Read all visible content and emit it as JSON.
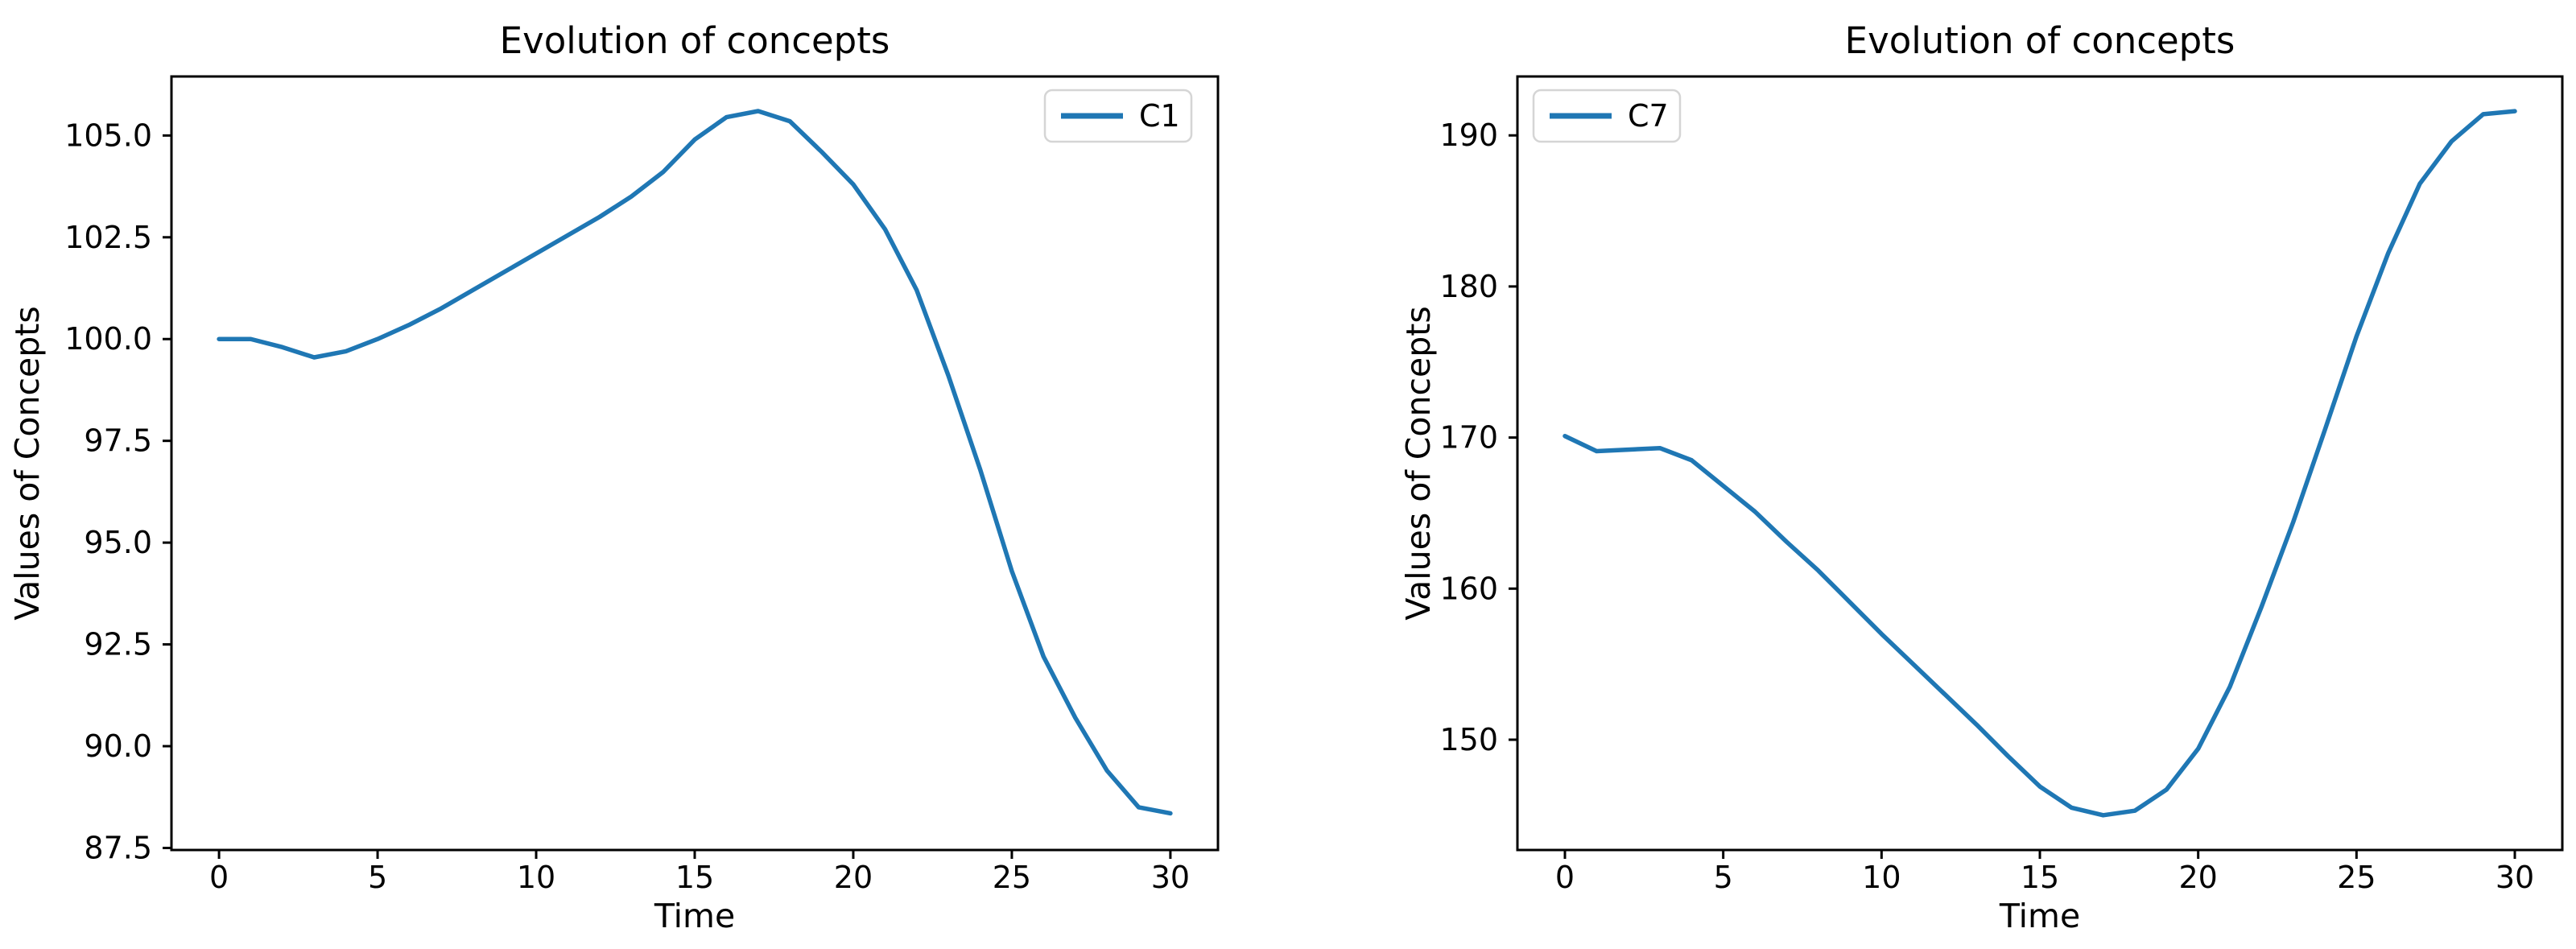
{
  "figure": {
    "background": "#ffffff",
    "line_color": "#1f77b4",
    "spine_color": "#000000",
    "legend_border_color": "#d5d5d5",
    "legend_bg_color": "#ffffff"
  },
  "chart_data": [
    {
      "type": "line",
      "title": "Evolution of concepts",
      "xlabel": "Time",
      "ylabel": "Values of Concepts",
      "legend": {
        "position": "top-right",
        "entries": [
          {
            "label": "C1",
            "color": "#1f77b4"
          }
        ]
      },
      "grid": false,
      "xlim": [
        -1.5,
        31.5
      ],
      "ylim": [
        87.45,
        106.45
      ],
      "xticks": {
        "values": [
          0,
          5,
          10,
          15,
          20,
          25,
          30
        ],
        "labels": [
          "0",
          "5",
          "10",
          "15",
          "20",
          "25",
          "30"
        ]
      },
      "yticks": {
        "values": [
          87.5,
          90.0,
          92.5,
          95.0,
          97.5,
          100.0,
          102.5,
          105.0
        ],
        "labels": [
          "87.5",
          "90.0",
          "92.5",
          "95.0",
          "97.5",
          "100.0",
          "102.5",
          "105.0"
        ]
      },
      "x": [
        0,
        1,
        2,
        3,
        4,
        5,
        6,
        7,
        8,
        9,
        10,
        11,
        12,
        13,
        14,
        15,
        16,
        17,
        18,
        19,
        20,
        21,
        22,
        23,
        24,
        25,
        26,
        27,
        28,
        29,
        30
      ],
      "series": [
        {
          "name": "C1",
          "color": "#1f77b4",
          "values": [
            100.0,
            100.0,
            99.8,
            99.55,
            99.7,
            100.0,
            100.35,
            100.75,
            101.2,
            101.65,
            102.1,
            102.55,
            103.0,
            103.5,
            104.1,
            104.9,
            105.45,
            105.6,
            105.35,
            104.6,
            103.8,
            102.7,
            101.2,
            99.1,
            96.8,
            94.3,
            92.2,
            90.7,
            89.4,
            88.5,
            88.35
          ]
        }
      ]
    },
    {
      "type": "line",
      "title": "Evolution of concepts",
      "xlabel": "Time",
      "ylabel": "Values of Concepts",
      "legend": {
        "position": "top-left",
        "entries": [
          {
            "label": "C7",
            "color": "#1f77b4"
          }
        ]
      },
      "grid": false,
      "xlim": [
        -1.5,
        31.5
      ],
      "ylim": [
        142.7,
        193.9
      ],
      "xticks": {
        "values": [
          0,
          5,
          10,
          15,
          20,
          25,
          30
        ],
        "labels": [
          "0",
          "5",
          "10",
          "15",
          "20",
          "25",
          "30"
        ]
      },
      "yticks": {
        "values": [
          150,
          160,
          170,
          180,
          190
        ],
        "labels": [
          "150",
          "160",
          "170",
          "180",
          "190"
        ]
      },
      "x": [
        0,
        1,
        2,
        3,
        4,
        5,
        6,
        7,
        8,
        9,
        10,
        11,
        12,
        13,
        14,
        15,
        16,
        17,
        18,
        19,
        20,
        21,
        22,
        23,
        24,
        25,
        26,
        27,
        28,
        29,
        30
      ],
      "series": [
        {
          "name": "C7",
          "color": "#1f77b4",
          "values": [
            170.1,
            169.1,
            169.2,
            169.3,
            168.5,
            166.8,
            165.1,
            163.1,
            161.2,
            159.1,
            157.0,
            155.0,
            153.0,
            151.0,
            148.9,
            146.9,
            145.5,
            145.0,
            145.3,
            146.7,
            149.4,
            153.5,
            158.8,
            164.4,
            170.5,
            176.7,
            182.2,
            186.8,
            189.6,
            191.4,
            191.6
          ]
        }
      ]
    }
  ]
}
